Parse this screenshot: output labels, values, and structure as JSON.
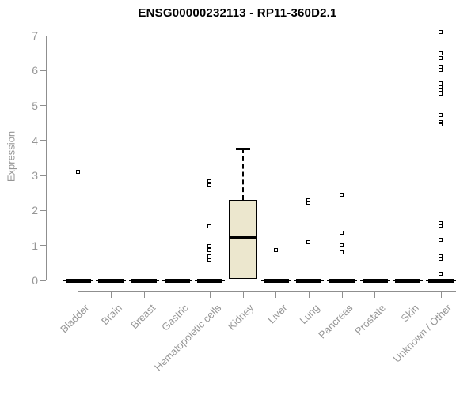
{
  "chart_data": {
    "type": "box",
    "title": "ENSG00000232113 - RP11-360D2.1",
    "ylabel": "Expression",
    "xlabel": "",
    "ylim": [
      0,
      7
    ],
    "yticks": [
      0,
      1,
      2,
      3,
      4,
      5,
      6,
      7
    ],
    "grid": false,
    "legend": "none",
    "categories": [
      "Bladder",
      "Brain",
      "Breast",
      "Gastric",
      "Hematopoietic cells",
      "Kidney",
      "Liver",
      "Lung",
      "Pancreas",
      "Prostate",
      "Skin",
      "Unknown / Other"
    ],
    "boxes": [
      {
        "category": "Bladder",
        "q1": 0,
        "median": 0,
        "q3": 0,
        "whisker_low": 0,
        "whisker_high": 0,
        "outliers": [
          3.1
        ]
      },
      {
        "category": "Brain",
        "q1": 0,
        "median": 0,
        "q3": 0,
        "whisker_low": 0,
        "whisker_high": 0,
        "outliers": []
      },
      {
        "category": "Breast",
        "q1": 0,
        "median": 0,
        "q3": 0,
        "whisker_low": 0,
        "whisker_high": 0,
        "outliers": []
      },
      {
        "category": "Gastric",
        "q1": 0,
        "median": 0,
        "q3": 0,
        "whisker_low": 0,
        "whisker_high": 0,
        "outliers": []
      },
      {
        "category": "Hematopoietic cells",
        "q1": 0,
        "median": 0,
        "q3": 0,
        "whisker_low": 0,
        "whisker_high": 0,
        "outliers": [
          2.82,
          2.7,
          1.54,
          0.97,
          0.86,
          0.68,
          0.56
        ]
      },
      {
        "category": "Kidney",
        "q1": 0.05,
        "median": 1.22,
        "q3": 2.31,
        "whisker_low": 0.05,
        "whisker_high": 3.77,
        "outliers": []
      },
      {
        "category": "Liver",
        "q1": 0,
        "median": 0,
        "q3": 0,
        "whisker_low": 0,
        "whisker_high": 0,
        "outliers": [
          0.85
        ]
      },
      {
        "category": "Lung",
        "q1": 0,
        "median": 0,
        "q3": 0,
        "whisker_low": 0,
        "whisker_high": 0,
        "outliers": [
          2.28,
          2.22,
          1.08
        ]
      },
      {
        "category": "Pancreas",
        "q1": 0,
        "median": 0,
        "q3": 0,
        "whisker_low": 0,
        "whisker_high": 0,
        "outliers": [
          2.45,
          1.35,
          1.0,
          0.8
        ]
      },
      {
        "category": "Prostate",
        "q1": 0,
        "median": 0,
        "q3": 0,
        "whisker_low": 0,
        "whisker_high": 0,
        "outliers": []
      },
      {
        "category": "Skin",
        "q1": 0,
        "median": 0,
        "q3": 0,
        "whisker_low": 0,
        "whisker_high": 0,
        "outliers": []
      },
      {
        "category": "Unknown / Other",
        "q1": 0,
        "median": 0,
        "q3": 0,
        "whisker_low": 0,
        "whisker_high": 0,
        "outliers": [
          7.08,
          6.48,
          6.35,
          6.1,
          6.0,
          5.62,
          5.5,
          5.44,
          5.32,
          4.72,
          4.52,
          4.44,
          1.62,
          1.55,
          1.15,
          0.68,
          0.62,
          0.18
        ]
      }
    ],
    "colors": {
      "box_fill": "#ECE7CE",
      "box_border": "#000000",
      "median": "#000000",
      "outlier": "#000000",
      "axis": "#8f8f8f",
      "text": "#969696",
      "title": "#000000",
      "background": "#ffffff"
    }
  }
}
